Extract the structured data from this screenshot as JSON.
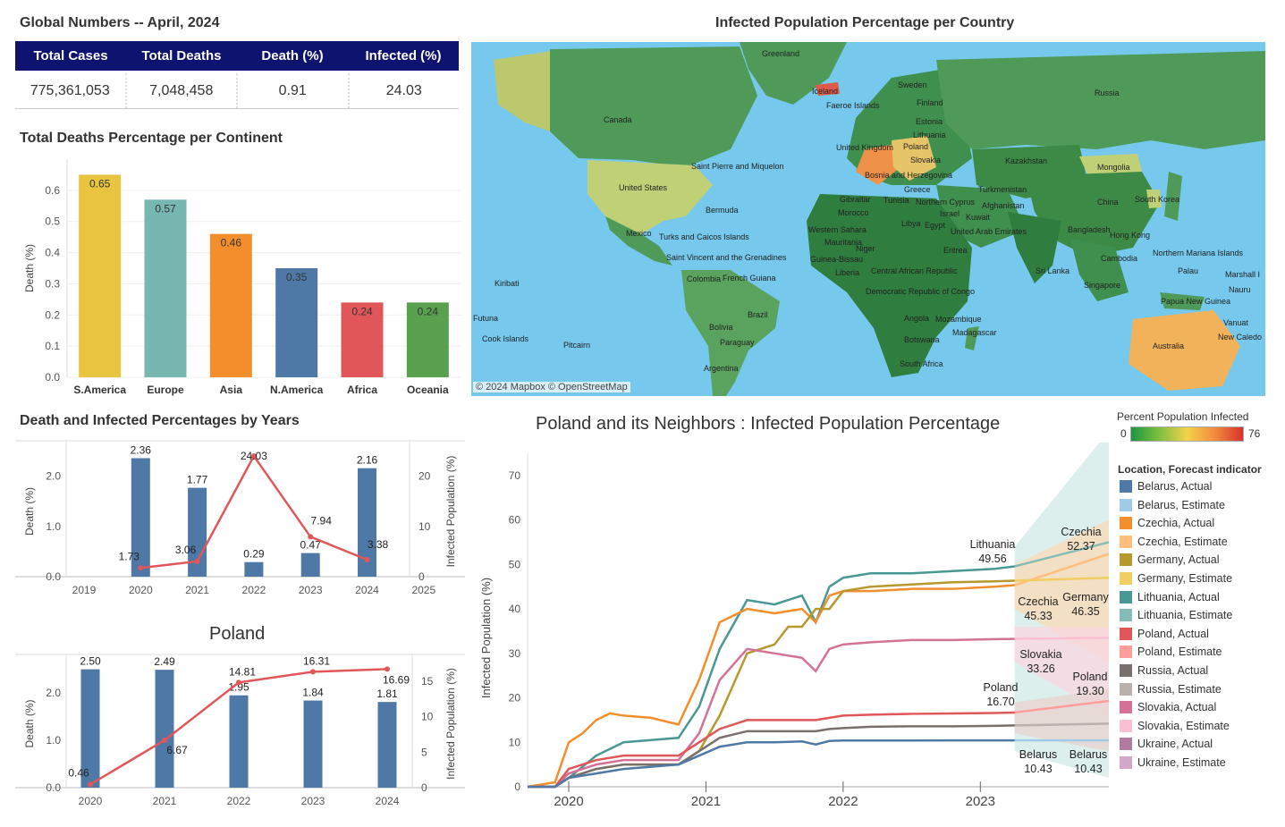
{
  "global": {
    "title": "Global Numbers  --  April, 2024",
    "headers": [
      "Total Cases",
      "Total Deaths",
      "Death (%)",
      "Infected (%)"
    ],
    "values": [
      "775,361,053",
      "7,048,458",
      "0.91",
      "24.03"
    ]
  },
  "map": {
    "title": "Infected Population Percentage per Country",
    "credit": "© 2024 Mapbox © OpenStreetMap",
    "labels": [
      "Greenland",
      "Iceland",
      "Faeroe Islands",
      "Sweden",
      "Finland",
      "Estonia",
      "Lithuania",
      "Poland",
      "United Kingdom",
      "Slovakia",
      "Bosnia and Herzegovina",
      "Greece",
      "Russia",
      "Canada",
      "Saint Pierre and Miquelon",
      "United States",
      "Bermuda",
      "Mexico",
      "Turks and Caicos Islands",
      "Saint Vincent and the Grenadines",
      "Colombia",
      "French Guiana",
      "Brazil",
      "Bolivia",
      "Paraguay",
      "Argentina",
      "Kiribati",
      "Futuna",
      "Cook Islands",
      "Pitcairn",
      "Gibraltar",
      "Tunisia",
      "Morocco",
      "Northern Cyprus",
      "Israel",
      "Kuwait",
      "Libya",
      "Egypt",
      "Western Sahara",
      "Mauritania",
      "Niger",
      "Guinea-Bissau",
      "Liberia",
      "Central African Republic",
      "Eritrea",
      "Democratic Republic of Congo",
      "Angola",
      "Mozambique",
      "Madagascar",
      "Botswana",
      "South Africa",
      "Kazakhstan",
      "Mongolia",
      "Turkmenistan",
      "Afghanistan",
      "United Arab Emirates",
      "China",
      "South Korea",
      "Bangladesh",
      "Hong Kong",
      "Sri Lanka",
      "Cambodia",
      "Singapore",
      "Northern Mariana Islands",
      "Palau",
      "Marshall I",
      "Nauru",
      "Papua New Guinea",
      "Australia",
      "Vanuat",
      "New Caledo"
    ]
  },
  "legend": {
    "title": "Percent Population Infected",
    "min": "0",
    "max": "76",
    "series_title": "Location, Forecast indicator",
    "series": [
      {
        "label": "Belarus, Actual",
        "color": "#4e79a7"
      },
      {
        "label": "Belarus, Estimate",
        "color": "#a0cbe8"
      },
      {
        "label": "Czechia, Actual",
        "color": "#f28e2b"
      },
      {
        "label": "Czechia, Estimate",
        "color": "#ffbe7d"
      },
      {
        "label": "Germany, Actual",
        "color": "#b6992d"
      },
      {
        "label": "Germany, Estimate",
        "color": "#f1ce63"
      },
      {
        "label": "Lithuania, Actual",
        "color": "#499894"
      },
      {
        "label": "Lithuania, Estimate",
        "color": "#86bcb6"
      },
      {
        "label": "Poland, Actual",
        "color": "#e15759"
      },
      {
        "label": "Poland, Estimate",
        "color": "#ff9d9a"
      },
      {
        "label": "Russia, Actual",
        "color": "#79706e"
      },
      {
        "label": "Russia, Estimate",
        "color": "#bab0ac"
      },
      {
        "label": "Slovakia, Actual",
        "color": "#d37295"
      },
      {
        "label": "Slovakia, Estimate",
        "color": "#fabfd2"
      },
      {
        "label": "Ukraine, Actual",
        "color": "#b07aa1"
      },
      {
        "label": "Ukraine, Estimate",
        "color": "#d4a6c8"
      }
    ]
  },
  "chart_data": [
    {
      "type": "bar",
      "title": "Total Deaths Percentage per Continent",
      "ylabel": "Death (%)",
      "ylim": [
        0,
        0.7
      ],
      "yticks": [
        "0.0",
        "0.1",
        "0.2",
        "0.3",
        "0.4",
        "0.5",
        "0.6"
      ],
      "categories": [
        "S.America",
        "Europe",
        "Asia",
        "N.America",
        "Africa",
        "Oceania"
      ],
      "values": [
        0.65,
        0.57,
        0.46,
        0.35,
        0.24,
        0.24
      ],
      "value_labels": [
        "0.65",
        "0.57",
        "0.46",
        "0.35",
        "0.24",
        "0.24"
      ],
      "colors": [
        "#e9c440",
        "#76b7b2",
        "#f28e2b",
        "#4e79a7",
        "#e15759",
        "#59a14f"
      ]
    },
    {
      "type": "bar+line",
      "title": "Death and Infected Percentages by Years",
      "ylabel": "Death (%)",
      "y2label": "Infected Population (%)",
      "ylim": [
        0,
        2.6
      ],
      "yticks": [
        "0.0",
        "1.0",
        "2.0"
      ],
      "y2lim": [
        0,
        26
      ],
      "y2ticks": [
        "0",
        "10",
        "20"
      ],
      "xticks": [
        "2019",
        "2020",
        "2021",
        "2022",
        "2023",
        "2024",
        "2025"
      ],
      "categories": [
        "2020",
        "2021",
        "2022",
        "2023",
        "2024"
      ],
      "death": [
        2.36,
        1.77,
        0.29,
        0.47,
        2.16
      ],
      "death_labels": [
        "2.36",
        "1.77",
        "0.29",
        "0.47",
        "2.16"
      ],
      "infected": [
        1.73,
        3.06,
        24.03,
        7.94,
        3.38
      ],
      "infected_labels": [
        "1.73",
        "3.06",
        "24.03",
        "7.94",
        "3.38"
      ]
    },
    {
      "type": "bar+line",
      "title": "Poland",
      "ylabel": "Death (%)",
      "y2label": "Infected Population (%)",
      "ylim": [
        0,
        2.7
      ],
      "yticks": [
        "0.0",
        "1.0",
        "2.0"
      ],
      "y2lim": [
        0,
        18
      ],
      "y2ticks": [
        "0",
        "5",
        "10",
        "15"
      ],
      "categories": [
        "2020",
        "2021",
        "2022",
        "2023",
        "2024"
      ],
      "death": [
        2.5,
        2.49,
        1.95,
        1.84,
        1.81
      ],
      "death_labels": [
        "2.50",
        "2.49",
        "1.95",
        "1.84",
        "1.81"
      ],
      "infected": [
        0.46,
        6.67,
        14.81,
        16.31,
        16.69
      ],
      "infected_labels": [
        "0.46",
        "6.67",
        "14.81",
        "16.31",
        "16.69"
      ]
    },
    {
      "type": "line",
      "title": "Poland and its Neighbors :  Infected Population Percentage",
      "ylabel": "Infected Population (%)",
      "ylim": [
        0,
        75
      ],
      "yticks": [
        "0",
        "10",
        "20",
        "30",
        "40",
        "50",
        "60",
        "70"
      ],
      "xticks": [
        "2020",
        "2021",
        "2022",
        "2023"
      ],
      "x_range": [
        2019.7,
        2023.9
      ],
      "series": [
        {
          "name": "Lithuania",
          "x": [
            2019.7,
            2019.9,
            2020.0,
            2020.2,
            2020.4,
            2020.6,
            2020.8,
            2020.95,
            2021.1,
            2021.3,
            2021.5,
            2021.7,
            2021.8,
            2021.9,
            2022.0,
            2022.2,
            2022.5,
            2022.8,
            2023.1,
            2023.25
          ],
          "y": [
            0,
            0,
            2,
            7,
            10,
            10.5,
            11,
            18,
            31,
            42,
            41,
            43,
            37,
            45,
            47,
            48,
            48,
            48.5,
            49,
            49.56
          ]
        },
        {
          "name": "Czechia",
          "x": [
            2019.7,
            2019.9,
            2020.0,
            2020.1,
            2020.2,
            2020.3,
            2020.4,
            2020.6,
            2020.8,
            2020.95,
            2021.1,
            2021.3,
            2021.5,
            2021.7,
            2021.8,
            2021.9,
            2022.0,
            2022.2,
            2022.5,
            2022.8,
            2023.1,
            2023.25
          ],
          "y": [
            0,
            1,
            10,
            12,
            15,
            16.5,
            16,
            15.5,
            14,
            24,
            37,
            40,
            39,
            40,
            37,
            43,
            44,
            44,
            44.5,
            44.5,
            45,
            45.33
          ]
        },
        {
          "name": "Germany",
          "x": [
            2019.7,
            2019.9,
            2020.0,
            2020.2,
            2020.4,
            2020.6,
            2020.8,
            2020.95,
            2021.1,
            2021.3,
            2021.5,
            2021.6,
            2021.7,
            2021.8,
            2021.9,
            2022.0,
            2022.2,
            2022.5,
            2022.8,
            2023.1,
            2023.25
          ],
          "y": [
            0,
            0,
            2,
            4,
            5,
            5,
            5,
            8,
            16,
            30,
            32,
            36,
            36,
            40,
            40,
            44,
            45,
            45.5,
            46,
            46.2,
            46.35
          ]
        },
        {
          "name": "Slovakia",
          "x": [
            2019.7,
            2019.9,
            2020.0,
            2020.2,
            2020.4,
            2020.6,
            2020.8,
            2020.95,
            2021.1,
            2021.3,
            2021.5,
            2021.7,
            2021.8,
            2021.9,
            2022.0,
            2022.2,
            2022.5,
            2022.8,
            2023.1,
            2023.25
          ],
          "y": [
            0,
            0,
            3,
            5,
            6,
            6,
            6,
            12,
            24,
            31,
            30,
            29,
            26,
            31,
            32,
            32.5,
            33,
            33,
            33.2,
            33.26
          ]
        },
        {
          "name": "Poland",
          "x": [
            2019.7,
            2019.9,
            2020.0,
            2020.2,
            2020.4,
            2020.6,
            2020.8,
            2020.95,
            2021.1,
            2021.3,
            2021.5,
            2021.7,
            2021.8,
            2021.9,
            2022.0,
            2022.2,
            2022.5,
            2022.8,
            2023.1,
            2023.25
          ],
          "y": [
            0,
            0,
            4,
            6,
            7,
            7,
            7,
            10,
            13,
            15,
            15,
            15,
            15,
            15.5,
            16,
            16.2,
            16.4,
            16.5,
            16.6,
            16.7
          ]
        },
        {
          "name": "Russia",
          "x": [
            2019.7,
            2019.9,
            2020.0,
            2020.2,
            2020.4,
            2020.6,
            2020.8,
            2020.95,
            2021.1,
            2021.3,
            2021.5,
            2021.7,
            2021.8,
            2021.9,
            2022.0,
            2022.2,
            2022.5,
            2022.8,
            2023.1,
            2023.25
          ],
          "y": [
            0,
            0,
            2,
            4,
            5,
            5,
            5,
            8,
            11,
            12.5,
            12.5,
            12.5,
            12.5,
            13,
            13.2,
            13.5,
            13.6,
            13.6,
            13.7,
            13.8
          ]
        },
        {
          "name": "Belarus",
          "x": [
            2019.7,
            2019.9,
            2020.0,
            2020.2,
            2020.4,
            2020.6,
            2020.8,
            2020.95,
            2021.1,
            2021.3,
            2021.5,
            2021.7,
            2021.8,
            2021.9,
            2022.0,
            2022.2,
            2022.5,
            2022.8,
            2023.1,
            2023.25
          ],
          "y": [
            0,
            0,
            2,
            3,
            4,
            4.5,
            5,
            7,
            9,
            10,
            10,
            10.2,
            9.5,
            10.3,
            10.4,
            10.4,
            10.4,
            10.43,
            10.43,
            10.43
          ]
        }
      ],
      "labels": [
        {
          "name": "Lithuania",
          "value": "49.56"
        },
        {
          "name": "Czechia",
          "value": "52.37"
        },
        {
          "name": "Czechia",
          "value": "45.33"
        },
        {
          "name": "Germany",
          "value": "46.35"
        },
        {
          "name": "Slovakia",
          "value": "33.26"
        },
        {
          "name": "Poland",
          "value": "19.30"
        },
        {
          "name": "Poland",
          "value": "16.70"
        },
        {
          "name": "Belarus",
          "value": "10.43"
        },
        {
          "name": "Belarus",
          "value": "10.43"
        }
      ]
    }
  ]
}
